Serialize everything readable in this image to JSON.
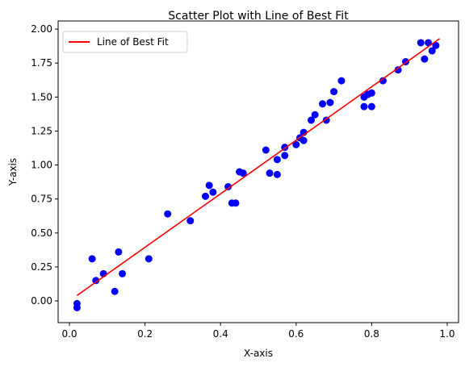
{
  "chart_data": {
    "type": "scatter",
    "title": "Scatter Plot with Line of Best Fit",
    "xlabel": "X-axis",
    "ylabel": "Y-axis",
    "xlim": [
      -0.03,
      1.03
    ],
    "ylim": [
      -0.16,
      2.06
    ],
    "xticks": [
      0.0,
      0.2,
      0.4,
      0.6,
      0.8,
      1.0
    ],
    "xtick_labels": [
      "0.0",
      "0.2",
      "0.4",
      "0.6",
      "0.8",
      "1.0"
    ],
    "yticks": [
      0.0,
      0.25,
      0.5,
      0.75,
      1.0,
      1.25,
      1.5,
      1.75,
      2.0
    ],
    "ytick_labels": [
      "0.00",
      "0.25",
      "0.50",
      "0.75",
      "1.00",
      "1.25",
      "1.50",
      "1.75",
      "2.00"
    ],
    "grid": false,
    "legend_position": "upper-left",
    "series": [
      {
        "kind": "scatter",
        "color": "#0000ff",
        "points": [
          [
            0.02,
            -0.05
          ],
          [
            0.02,
            -0.02
          ],
          [
            0.06,
            0.31
          ],
          [
            0.07,
            0.15
          ],
          [
            0.09,
            0.2
          ],
          [
            0.12,
            0.07
          ],
          [
            0.13,
            0.36
          ],
          [
            0.14,
            0.2
          ],
          [
            0.21,
            0.31
          ],
          [
            0.26,
            0.64
          ],
          [
            0.32,
            0.59
          ],
          [
            0.36,
            0.77
          ],
          [
            0.37,
            0.85
          ],
          [
            0.38,
            0.8
          ],
          [
            0.42,
            0.84
          ],
          [
            0.43,
            0.72
          ],
          [
            0.44,
            0.72
          ],
          [
            0.45,
            0.95
          ],
          [
            0.46,
            0.94
          ],
          [
            0.52,
            1.11
          ],
          [
            0.53,
            0.94
          ],
          [
            0.55,
            1.04
          ],
          [
            0.55,
            0.93
          ],
          [
            0.57,
            1.07
          ],
          [
            0.57,
            1.13
          ],
          [
            0.6,
            1.15
          ],
          [
            0.61,
            1.2
          ],
          [
            0.62,
            1.24
          ],
          [
            0.62,
            1.18
          ],
          [
            0.64,
            1.33
          ],
          [
            0.65,
            1.37
          ],
          [
            0.67,
            1.45
          ],
          [
            0.68,
            1.33
          ],
          [
            0.69,
            1.46
          ],
          [
            0.7,
            1.54
          ],
          [
            0.72,
            1.62
          ],
          [
            0.78,
            1.43
          ],
          [
            0.78,
            1.5
          ],
          [
            0.79,
            1.52
          ],
          [
            0.79,
            1.52
          ],
          [
            0.8,
            1.53
          ],
          [
            0.8,
            1.43
          ],
          [
            0.87,
            1.7
          ],
          [
            0.89,
            1.76
          ],
          [
            0.93,
            1.9
          ],
          [
            0.94,
            1.78
          ],
          [
            0.95,
            1.9
          ],
          [
            0.96,
            1.84
          ],
          [
            0.97,
            1.88
          ],
          [
            0.83,
            1.62
          ]
        ]
      },
      {
        "kind": "line",
        "name": "Line of Best Fit",
        "color": "#ff0000",
        "x": [
          0.02,
          0.98
        ],
        "y": [
          0.04,
          1.93
        ]
      }
    ]
  }
}
